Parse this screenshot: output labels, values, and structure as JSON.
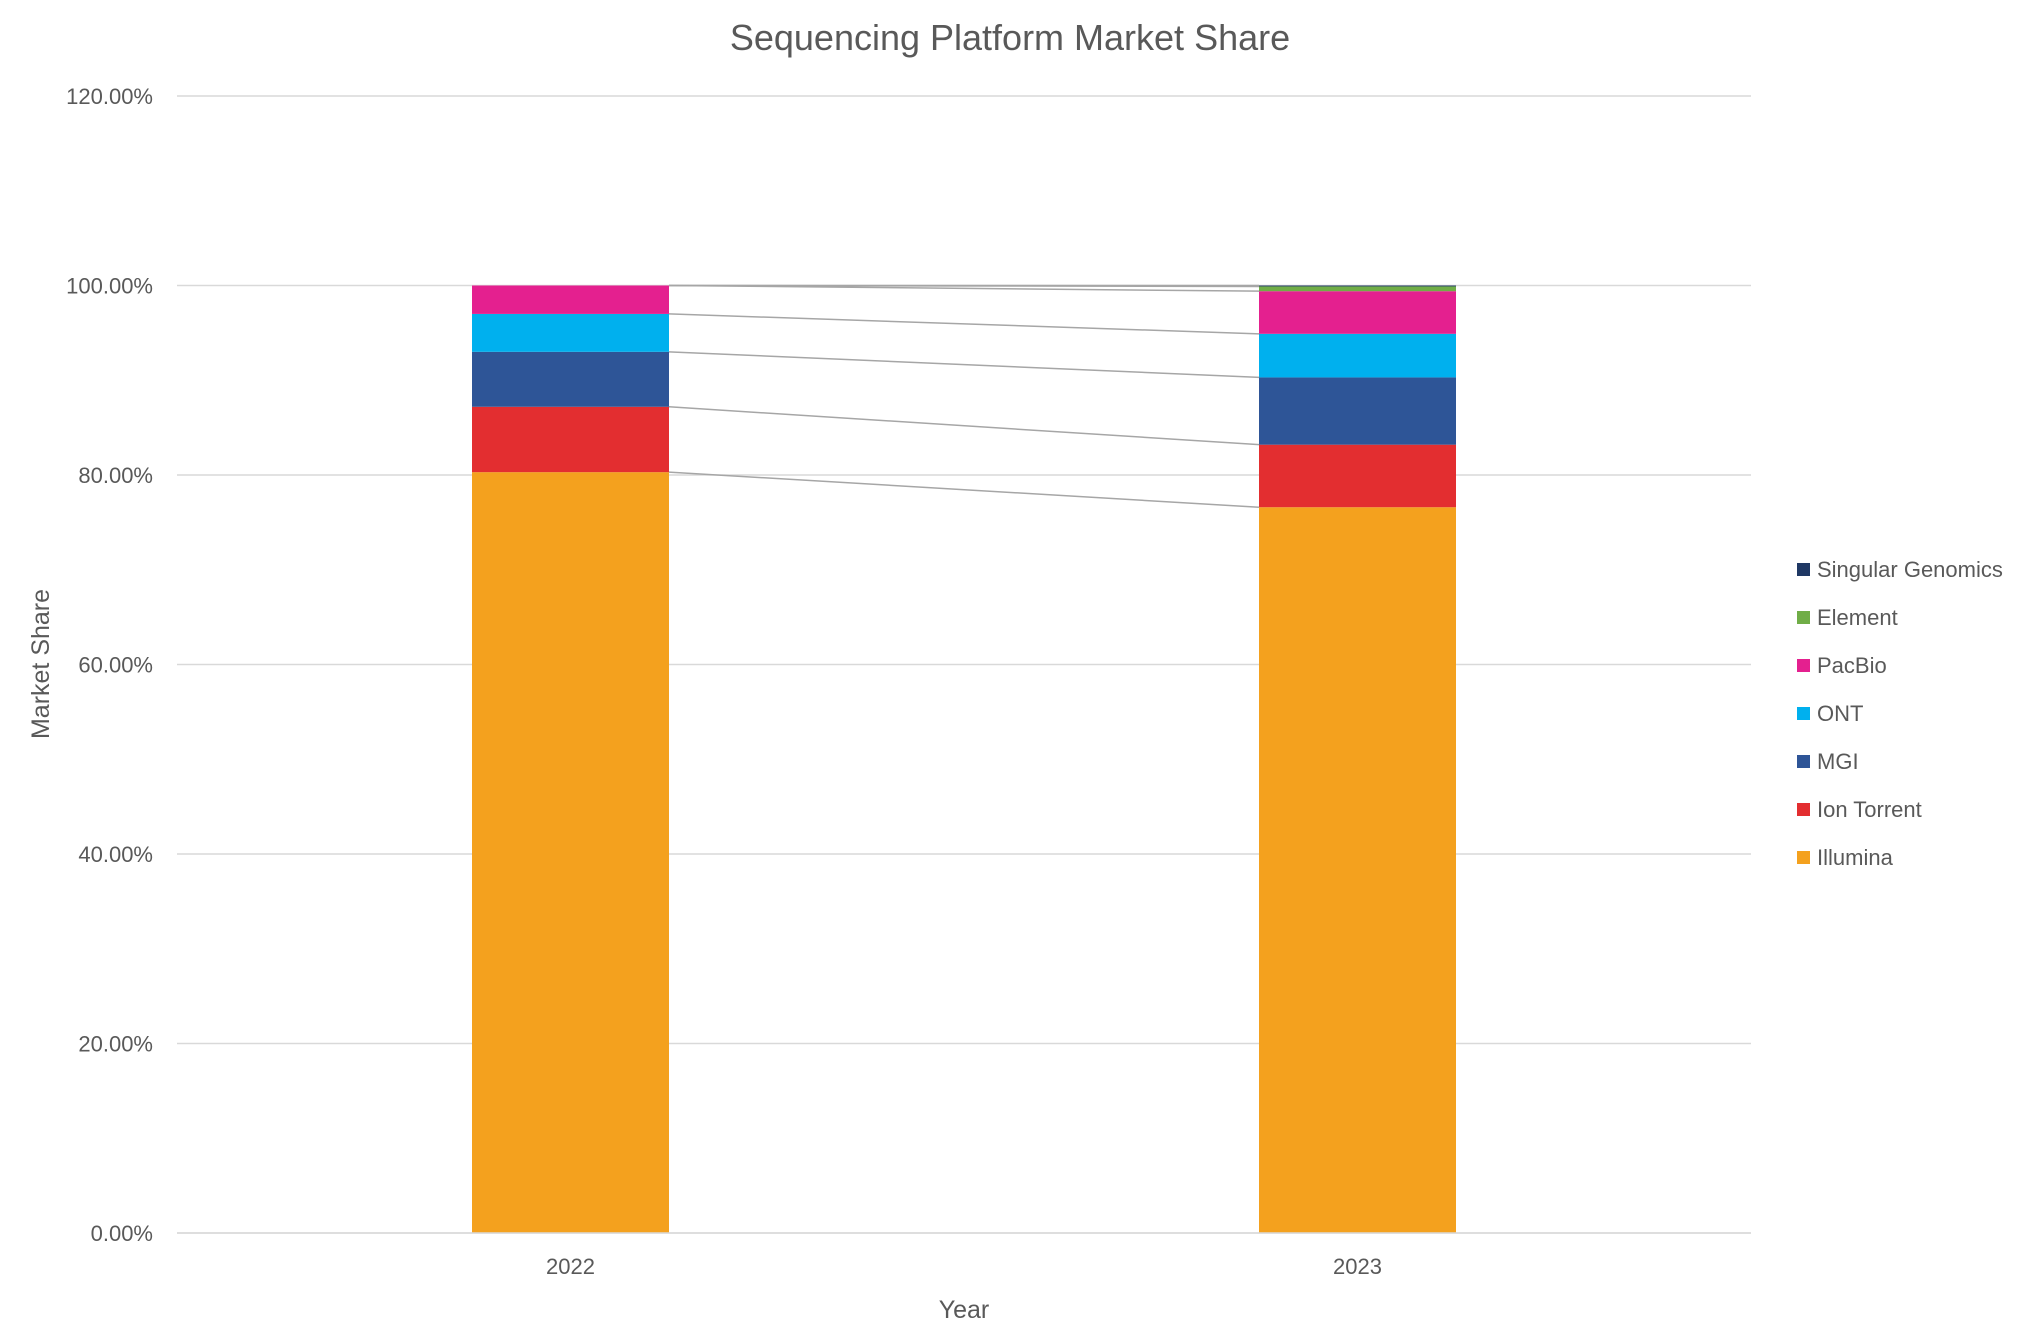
{
  "chart_data": {
    "type": "bar",
    "stacked": true,
    "title": "Sequencing Platform Market Share",
    "xlabel": "Year",
    "ylabel": "Market Share",
    "ylim": [
      0,
      1.2
    ],
    "y_ticks": [
      "0.00%",
      "20.00%",
      "40.00%",
      "60.00%",
      "80.00%",
      "100.00%",
      "120.00%"
    ],
    "categories": [
      "2022",
      "2023"
    ],
    "grid": true,
    "series_lines": true,
    "legend_position": "right",
    "series": [
      {
        "name": "Illumina",
        "color": "#F4A11E",
        "values": [
          0.803,
          0.766
        ]
      },
      {
        "name": "Ion Torrent",
        "color": "#E32E30",
        "values": [
          0.069,
          0.066
        ]
      },
      {
        "name": "MGI",
        "color": "#2E5597",
        "values": [
          0.058,
          0.071
        ]
      },
      {
        "name": "ONT",
        "color": "#00B0EE",
        "values": [
          0.04,
          0.046
        ]
      },
      {
        "name": "PacBio",
        "color": "#E4208F",
        "values": [
          0.03,
          0.045
        ]
      },
      {
        "name": "Element",
        "color": "#70AD47",
        "values": [
          0.0,
          0.005
        ]
      },
      {
        "name": "Singular Genomics",
        "color": "#1F3864",
        "values": [
          0.0,
          0.001
        ]
      }
    ],
    "colors": {
      "gridline": "#D9D9D9",
      "series_line": "#A6A6A6",
      "text": "#595959"
    }
  }
}
